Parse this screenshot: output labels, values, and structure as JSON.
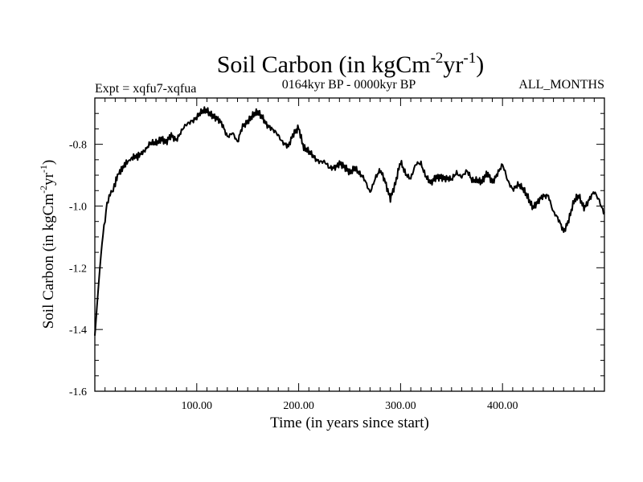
{
  "chart_data": {
    "type": "line",
    "title": "Soil Carbon (in kgCm",
    "title_sup1": "-2",
    "title_mid": "yr",
    "title_sup2": "-1",
    "title_end": ")",
    "header_left": "Expt = xqfu7-xqfua",
    "header_center": "0164kyr BP - 0000kyr BP",
    "header_right": "ALL_MONTHS",
    "xlabel": "Time (in years since start)",
    "ylabel_parts": [
      "Soil Carbon (in kgCm",
      "-2",
      "yr",
      "-1",
      ")"
    ],
    "xlim": [
      0,
      500
    ],
    "ylim": [
      -1.6,
      -0.65
    ],
    "x_ticks": [
      {
        "value": 100,
        "label": "100.00"
      },
      {
        "value": 200,
        "label": "200.00"
      },
      {
        "value": 300,
        "label": "300.00"
      },
      {
        "value": 400,
        "label": "400.00"
      }
    ],
    "y_ticks": [
      {
        "value": -1.6,
        "label": "-1.6"
      },
      {
        "value": -1.4,
        "label": "-1.4"
      },
      {
        "value": -1.2,
        "label": "-1.2"
      },
      {
        "value": -1.0,
        "label": "-1.0"
      },
      {
        "value": -0.8,
        "label": "-0.8"
      }
    ],
    "series": [
      {
        "name": "Soil Carbon",
        "x": [
          0,
          2,
          4,
          6,
          8,
          10,
          12,
          14,
          16,
          18,
          20,
          23,
          26,
          30,
          34,
          38,
          42,
          46,
          50,
          55,
          60,
          65,
          70,
          75,
          80,
          85,
          90,
          95,
          100,
          105,
          110,
          115,
          120,
          125,
          130,
          135,
          140,
          145,
          150,
          155,
          160,
          165,
          170,
          175,
          180,
          185,
          190,
          195,
          200,
          205,
          210,
          215,
          220,
          225,
          230,
          235,
          240,
          245,
          250,
          255,
          260,
          265,
          270,
          275,
          280,
          285,
          290,
          295,
          300,
          305,
          310,
          315,
          320,
          325,
          330,
          335,
          340,
          345,
          350,
          355,
          360,
          365,
          370,
          375,
          380,
          385,
          390,
          395,
          400,
          405,
          410,
          415,
          420,
          425,
          430,
          435,
          440,
          445,
          450,
          455,
          460,
          465,
          470,
          475,
          480,
          485,
          490,
          495,
          500
        ],
        "values": [
          -1.42,
          -1.33,
          -1.24,
          -1.16,
          -1.09,
          -1.04,
          -1.0,
          -0.97,
          -0.96,
          -0.94,
          -0.93,
          -0.9,
          -0.88,
          -0.86,
          -0.85,
          -0.84,
          -0.84,
          -0.83,
          -0.82,
          -0.8,
          -0.79,
          -0.78,
          -0.8,
          -0.77,
          -0.78,
          -0.76,
          -0.74,
          -0.72,
          -0.71,
          -0.7,
          -0.69,
          -0.7,
          -0.72,
          -0.74,
          -0.77,
          -0.76,
          -0.8,
          -0.74,
          -0.72,
          -0.71,
          -0.7,
          -0.71,
          -0.74,
          -0.76,
          -0.77,
          -0.79,
          -0.81,
          -0.77,
          -0.74,
          -0.81,
          -0.83,
          -0.84,
          -0.85,
          -0.86,
          -0.88,
          -0.87,
          -0.86,
          -0.88,
          -0.89,
          -0.87,
          -0.9,
          -0.92,
          -0.95,
          -0.91,
          -0.89,
          -0.92,
          -0.97,
          -0.93,
          -0.86,
          -0.89,
          -0.91,
          -0.87,
          -0.86,
          -0.9,
          -0.93,
          -0.91,
          -0.9,
          -0.91,
          -0.92,
          -0.89,
          -0.9,
          -0.89,
          -0.92,
          -0.91,
          -0.92,
          -0.9,
          -0.92,
          -0.89,
          -0.87,
          -0.92,
          -0.94,
          -0.93,
          -0.95,
          -0.97,
          -1.0,
          -0.99,
          -0.97,
          -0.96,
          -1.02,
          -1.05,
          -1.08,
          -1.04,
          -0.99,
          -0.97,
          -1.0,
          -0.98,
          -0.96,
          -0.98,
          -1.02
        ]
      }
    ]
  }
}
